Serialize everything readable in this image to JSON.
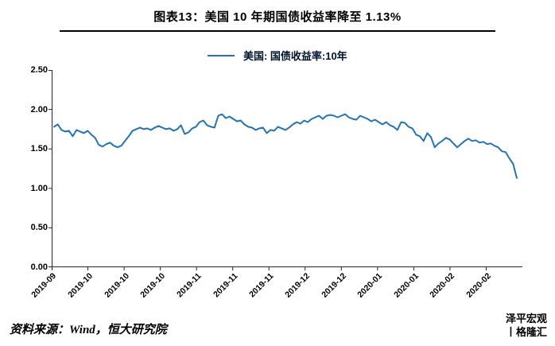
{
  "title": "图表13：美国 10 年期国债收益率降至 1.13%",
  "legend": {
    "label": "美国: 国债收益率:10年",
    "color": "#2473B5"
  },
  "source_note": "资料来源：Wind，恒大研究院",
  "watermark": {
    "line1": "泽平宏观",
    "line2": "丨格隆汇"
  },
  "chart_data": {
    "type": "line",
    "title": "美国: 国债收益率:10年",
    "xlabel": "",
    "ylabel": "",
    "ylim": [
      0,
      2.5
    ],
    "grid": false,
    "legend_position": "top-center",
    "line_color": "#2473B5",
    "y_ticks": [
      0,
      0.5,
      1.0,
      1.5,
      2.0,
      2.5
    ],
    "y_tick_labels": [
      "0.00",
      "0.50",
      "1.00",
      "1.50",
      "2.00",
      "2.50"
    ],
    "x_tick_labels": [
      "2019-09",
      "2019-10",
      "2019-10",
      "2019-10",
      "2019-11",
      "2019-11",
      "2019-11",
      "2019-12",
      "2019-12",
      "2020-01",
      "2020-01",
      "2020-02",
      "2020-02"
    ],
    "series": [
      {
        "name": "美国: 国债收益率:10年",
        "values": [
          1.78,
          1.81,
          1.74,
          1.72,
          1.73,
          1.66,
          1.74,
          1.72,
          1.7,
          1.73,
          1.68,
          1.64,
          1.55,
          1.53,
          1.56,
          1.58,
          1.54,
          1.52,
          1.54,
          1.6,
          1.66,
          1.73,
          1.75,
          1.77,
          1.75,
          1.76,
          1.74,
          1.77,
          1.79,
          1.77,
          1.75,
          1.76,
          1.73,
          1.75,
          1.8,
          1.69,
          1.71,
          1.76,
          1.78,
          1.84,
          1.86,
          1.8,
          1.78,
          1.77,
          1.92,
          1.94,
          1.89,
          1.91,
          1.88,
          1.85,
          1.86,
          1.81,
          1.78,
          1.77,
          1.74,
          1.76,
          1.77,
          1.7,
          1.74,
          1.73,
          1.78,
          1.76,
          1.74,
          1.77,
          1.81,
          1.84,
          1.82,
          1.86,
          1.84,
          1.88,
          1.9,
          1.92,
          1.88,
          1.92,
          1.93,
          1.92,
          1.9,
          1.92,
          1.94,
          1.9,
          1.88,
          1.87,
          1.92,
          1.9,
          1.88,
          1.85,
          1.87,
          1.84,
          1.81,
          1.84,
          1.8,
          1.78,
          1.74,
          1.84,
          1.83,
          1.78,
          1.76,
          1.68,
          1.66,
          1.6,
          1.7,
          1.65,
          1.52,
          1.57,
          1.6,
          1.64,
          1.62,
          1.57,
          1.52,
          1.56,
          1.6,
          1.63,
          1.6,
          1.61,
          1.58,
          1.59,
          1.56,
          1.57,
          1.54,
          1.52,
          1.47,
          1.46,
          1.38,
          1.31,
          1.13
        ]
      }
    ],
    "last_value_annotation": "1.13"
  }
}
